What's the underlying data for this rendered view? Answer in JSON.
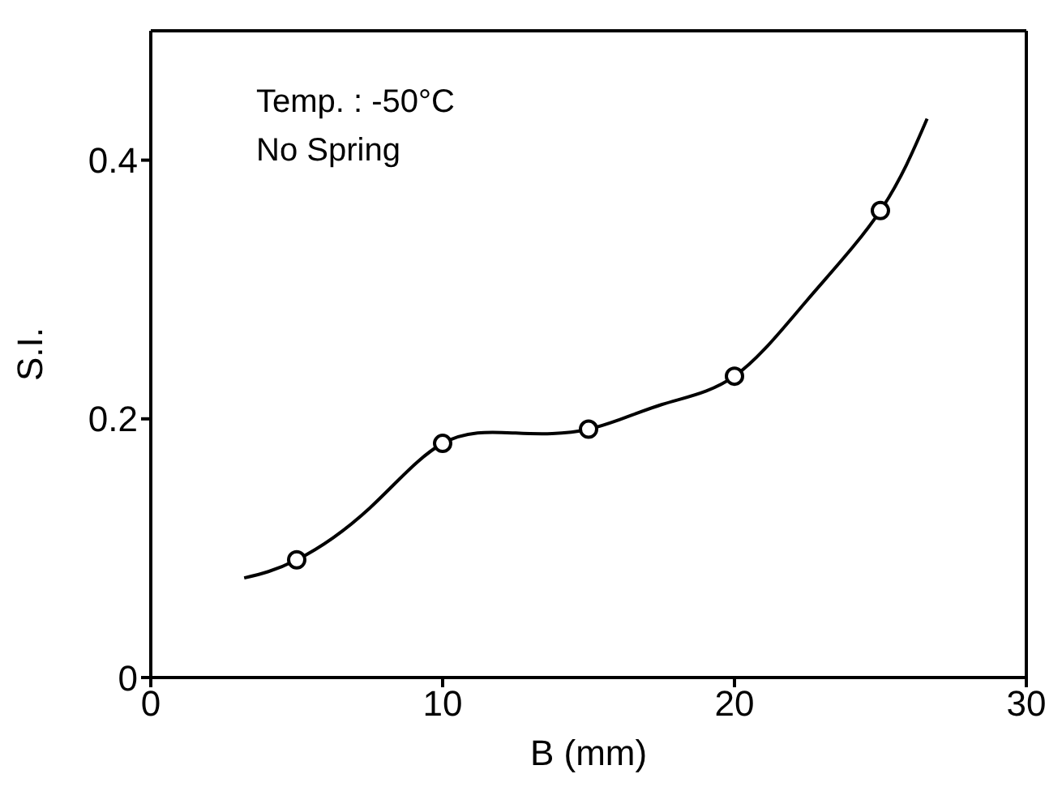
{
  "chart_data": {
    "type": "line",
    "xlabel": "B (mm)",
    "ylabel": "S.I.",
    "annotations": [
      "Temp. : -50°C",
      "No Spring"
    ],
    "xlim": [
      0,
      30
    ],
    "xticks": [
      0,
      10,
      20,
      30
    ],
    "ylim": [
      0,
      0.5
    ],
    "yticks": [
      0,
      0.2,
      0.4
    ],
    "legend": false,
    "series": [
      {
        "color": "#000000",
        "marker": "none",
        "x": [
          3.2,
          5,
          7.5,
          10,
          12.5,
          15,
          17.5,
          20,
          22.5,
          25,
          26.6
        ],
        "values": [
          0.077,
          0.091,
          0.131,
          0.181,
          0.189,
          0.192,
          0.211,
          0.233,
          0.292,
          0.361,
          0.432
        ]
      },
      {
        "type": "scatter",
        "color": "#000000",
        "marker": "circle",
        "x": [
          5,
          10,
          15,
          20,
          25
        ],
        "values": [
          0.091,
          0.181,
          0.192,
          0.233,
          0.361
        ]
      }
    ]
  }
}
